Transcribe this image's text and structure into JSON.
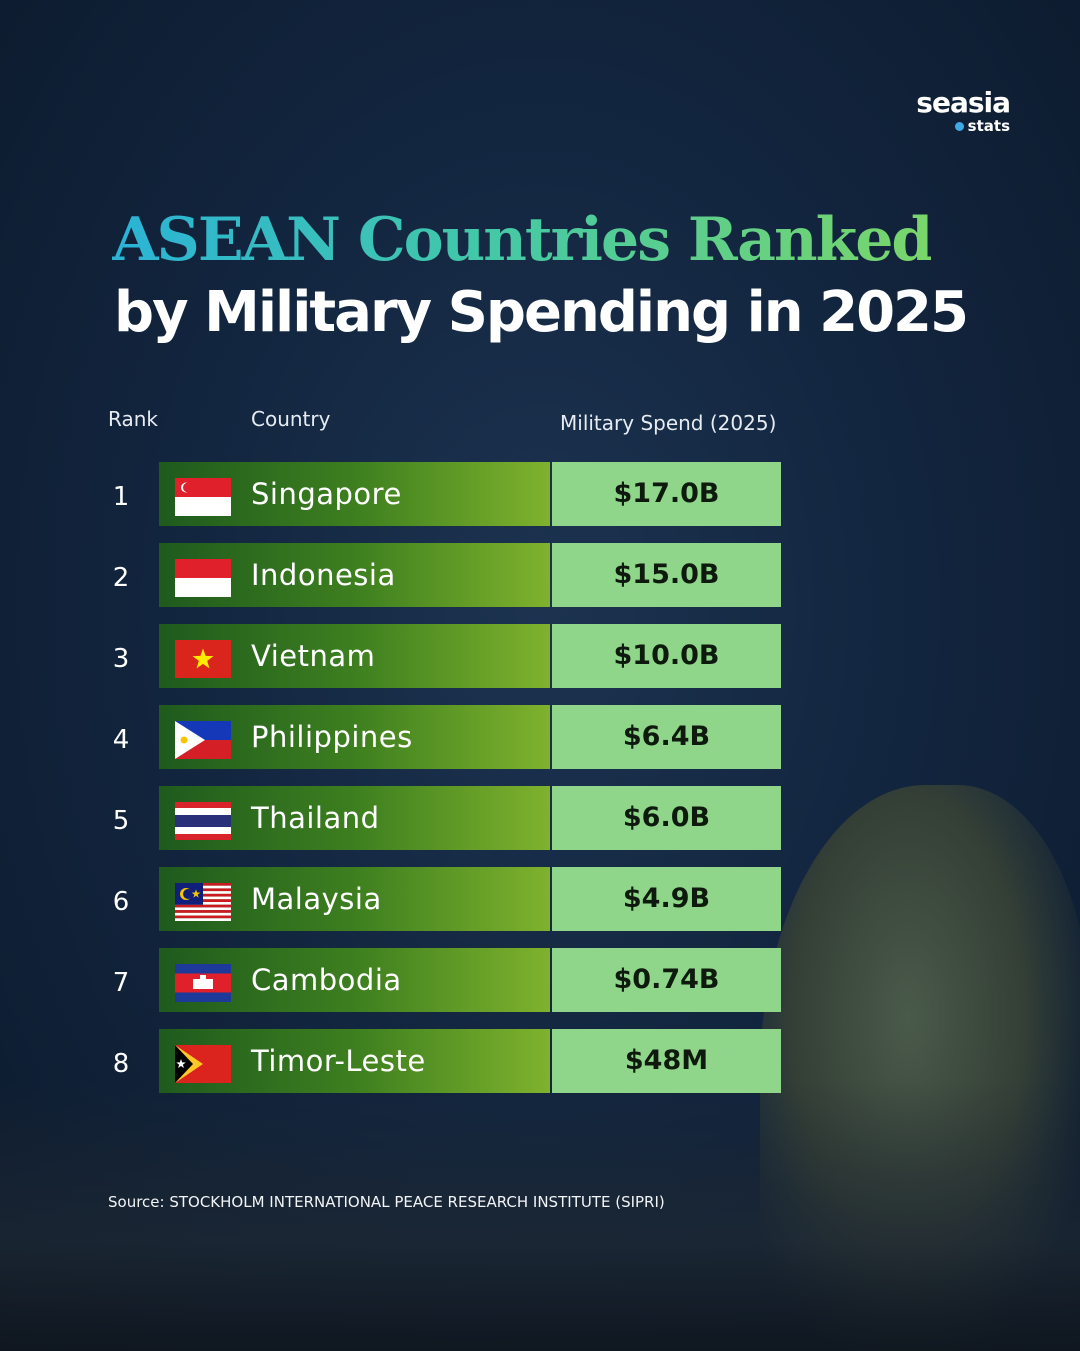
{
  "brand": {
    "name": "seasia",
    "sub": "stats"
  },
  "header": {
    "title_line1": "ASEAN Countries Ranked",
    "title_line2": "by Military Spending in 2025"
  },
  "table": {
    "columns": [
      "Rank",
      "Country",
      "Military Spend (2025)"
    ],
    "rows": [
      [
        "1",
        "Singapore",
        "$17.0B"
      ],
      [
        "2",
        "Indonesia",
        "$15.0B"
      ],
      [
        "3",
        "Vietnam",
        "$10.0B"
      ],
      [
        "4",
        "Philippines",
        "$6.4B"
      ],
      [
        "5",
        "Thailand",
        "$6.0B"
      ],
      [
        "6",
        "Malaysia",
        "$4.9B"
      ],
      [
        "7",
        "Cambodia",
        "$0.74B"
      ],
      [
        "8",
        "Timor-Leste",
        "$48M"
      ]
    ]
  },
  "source": "Source: STOCKHOLM INTERNATIONAL PEACE RESEARCH INSTITUTE (SIPRI)"
}
